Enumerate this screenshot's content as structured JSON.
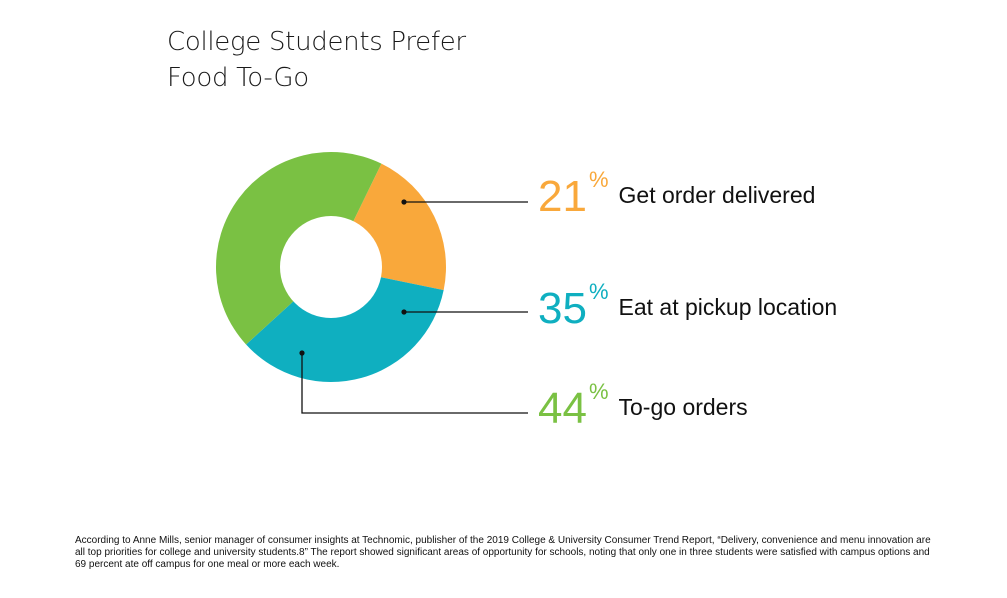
{
  "title_lines": [
    "College Students Prefer",
    "Food To-Go"
  ],
  "chart_data": {
    "type": "pie",
    "title": "College Students Prefer Food To-Go",
    "categories": [
      "Get order delivered",
      "Eat at pickup location",
      "To-go orders"
    ],
    "values": [
      21,
      35,
      44
    ],
    "unit": "%",
    "colors": [
      "#f9a83b",
      "#0fafc0",
      "#7ac143"
    ],
    "donut": true
  },
  "labels": [
    {
      "value": "21",
      "sign": "%",
      "text": "Get order delivered",
      "color": "#f9a83b"
    },
    {
      "value": "35",
      "sign": "%",
      "text": "Eat at pickup location",
      "color": "#0fafc0"
    },
    {
      "value": "44",
      "sign": "%",
      "text": "To-go orders",
      "color": "#7ac143"
    }
  ],
  "footnote": "According to Anne Mills, senior manager of consumer insights at Technomic, publisher of the 2019 College & University Consumer Trend Report, “Delivery, convenience and menu innovation are all top priorities for college and university students.8” The report showed significant areas of opportunity for schools, noting that only one in three students were satisfied with campus options and 69 percent ate off campus for one meal or more each week."
}
